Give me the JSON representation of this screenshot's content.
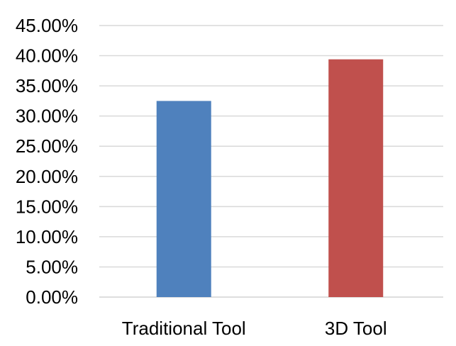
{
  "chart_data": {
    "type": "bar",
    "categories": [
      "Traditional Tool",
      "3D Tool"
    ],
    "values": [
      0.325,
      0.394
    ],
    "colors": [
      "#4f81bd",
      "#c0504d"
    ],
    "ylim": [
      0,
      0.45
    ],
    "ytick_step": 0.05,
    "ytick_labels": [
      "0.00%",
      "5.00%",
      "10.00%",
      "15.00%",
      "20.00%",
      "25.00%",
      "30.00%",
      "35.00%",
      "40.00%",
      "45.00%"
    ],
    "grid": true,
    "legend": "none",
    "title": "",
    "xlabel": "",
    "ylabel": ""
  }
}
